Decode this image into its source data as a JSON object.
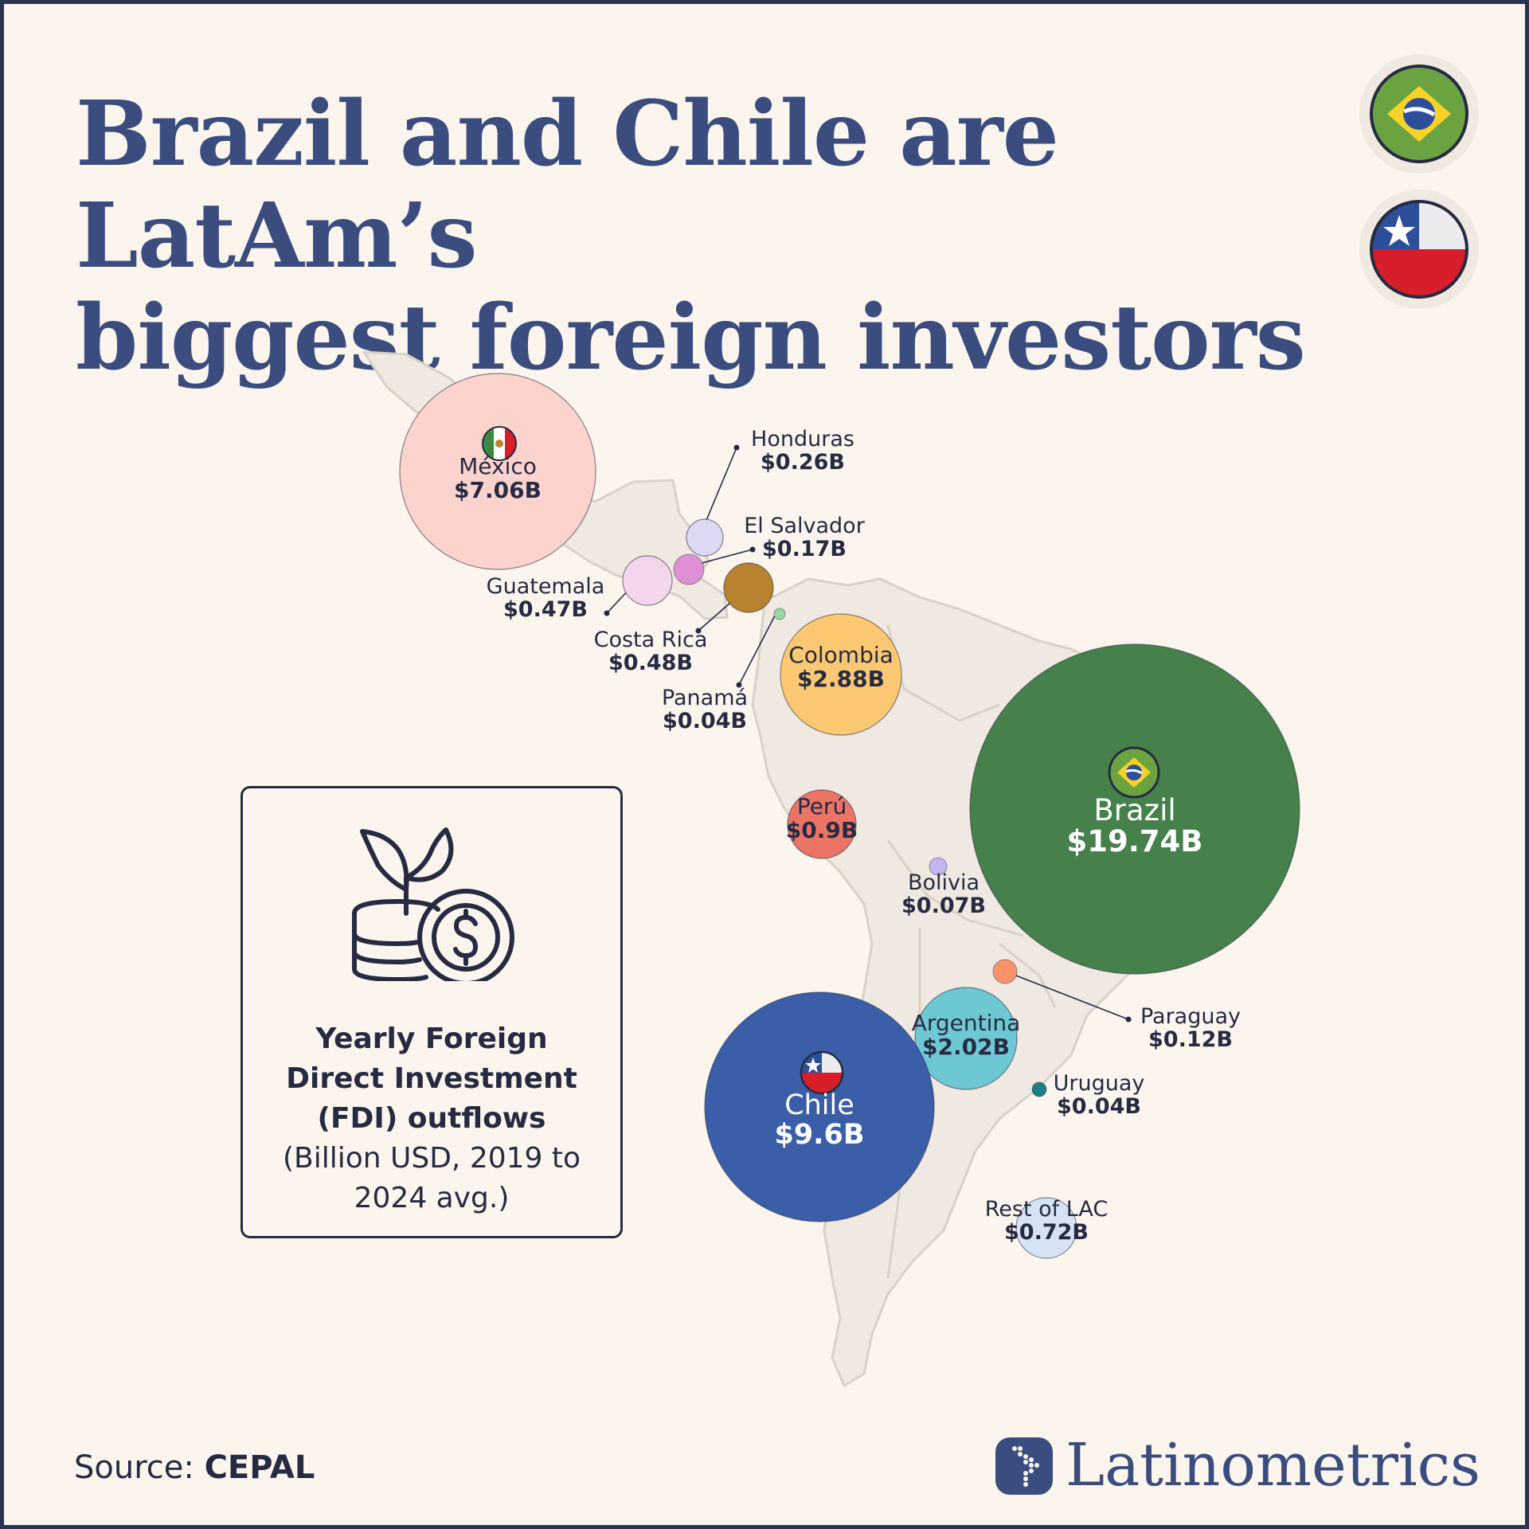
{
  "title_line1": "Brazil and Chile are LatAm’s",
  "title_line2": "biggest foreign investors",
  "legend": {
    "title": "Yearly Foreign\nDirect Investment\n(FDI) outflows",
    "subtitle": "(Billion USD, 2019 to\n2024 avg.)"
  },
  "source": {
    "label": "Source:",
    "name": "CEPAL"
  },
  "brand": "Latinometrics",
  "colors": {
    "title": "#3a4d7e",
    "background": "#fbf5ee",
    "map_land": "#efe9e2",
    "map_border": "#d9d1c5",
    "dark_text": "#262b42"
  },
  "chart_data": {
    "type": "bubble-map",
    "unit": "Billion USD",
    "points": [
      {
        "country": "México",
        "label": "$7.06B",
        "value": 7.06,
        "color": "#fcd3cd",
        "flag": "mexico-flag-icon"
      },
      {
        "country": "Honduras",
        "label": "$0.26B",
        "value": 0.26,
        "color": "#dcd9f2"
      },
      {
        "country": "El Salvador",
        "label": "$0.17B",
        "value": 0.17,
        "color": "#dd90d4"
      },
      {
        "country": "Guatemala",
        "label": "$0.47B",
        "value": 0.47,
        "color": "#f3d5ec"
      },
      {
        "country": "Costa Rica",
        "label": "$0.48B",
        "value": 0.48,
        "color": "#b8832e"
      },
      {
        "country": "Panamá",
        "label": "$0.04B",
        "value": 0.04,
        "color": "#98d8a0"
      },
      {
        "country": "Colombia",
        "label": "$2.88B",
        "value": 2.88,
        "color": "#fdc872"
      },
      {
        "country": "Brazil",
        "label": "$19.74B",
        "value": 19.74,
        "color": "#46804b",
        "flag": "brazil-flag-icon"
      },
      {
        "country": "Perú",
        "label": "$0.9B",
        "value": 0.9,
        "color": "#ec7466"
      },
      {
        "country": "Bolivia",
        "label": "$0.07B",
        "value": 0.07,
        "color": "#c4b5ef"
      },
      {
        "country": "Paraguay",
        "label": "$0.12B",
        "value": 0.12,
        "color": "#f9936a"
      },
      {
        "country": "Argentina",
        "label": "$2.02B",
        "value": 2.02,
        "color": "#6ec8d4"
      },
      {
        "country": "Chile",
        "label": "$9.6B",
        "value": 9.6,
        "color": "#3b5ea8",
        "flag": "chile-flag-icon"
      },
      {
        "country": "Uruguay",
        "label": "$0.04B",
        "value": 0.04,
        "color": "#1f7f86"
      },
      {
        "country": "Rest of LAC",
        "label": "$0.72B",
        "value": 0.72,
        "color": "#d5e3f5"
      }
    ]
  }
}
